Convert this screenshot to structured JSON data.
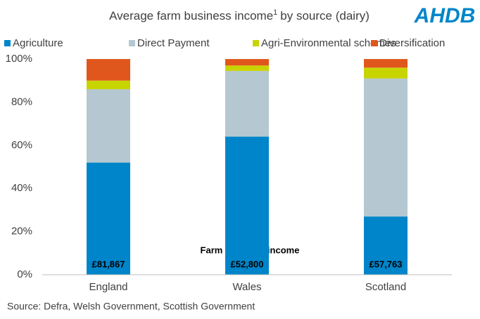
{
  "chart_data": {
    "type": "stacked_bar",
    "title": "Average farm business income",
    "title_superscript": "1",
    "title_suffix": "by source (dairy)",
    "logo": "AHDB",
    "categories": [
      "England",
      "Wales",
      "Scotland"
    ],
    "series": [
      {
        "name": "Agriculture",
        "color": "#0085ca",
        "values": [
          52,
          64,
          27
        ]
      },
      {
        "name": "Direct Payment",
        "color": "#b5c8d1",
        "values": [
          34,
          30.5,
          64
        ]
      },
      {
        "name": "Agri-Environmental schemes",
        "color": "#c8d400",
        "values": [
          4,
          2.5,
          5
        ]
      },
      {
        "name": "Diversification",
        "color": "#e0571d",
        "values": [
          10,
          3,
          4
        ]
      }
    ],
    "ylim": [
      0,
      100
    ],
    "yticks": [
      {
        "value": 0,
        "label": "0%"
      },
      {
        "value": 20,
        "label": "20%"
      },
      {
        "value": 40,
        "label": "40%"
      },
      {
        "value": 60,
        "label": "60%"
      },
      {
        "value": 80,
        "label": "80%"
      },
      {
        "value": 100,
        "label": "100%"
      }
    ],
    "grid": false,
    "annotation": "Farm business income",
    "income_labels": [
      "£81,867",
      "£52,800",
      "£57,763"
    ],
    "source": "Source: Defra, Welsh Government, Scottish Government"
  }
}
